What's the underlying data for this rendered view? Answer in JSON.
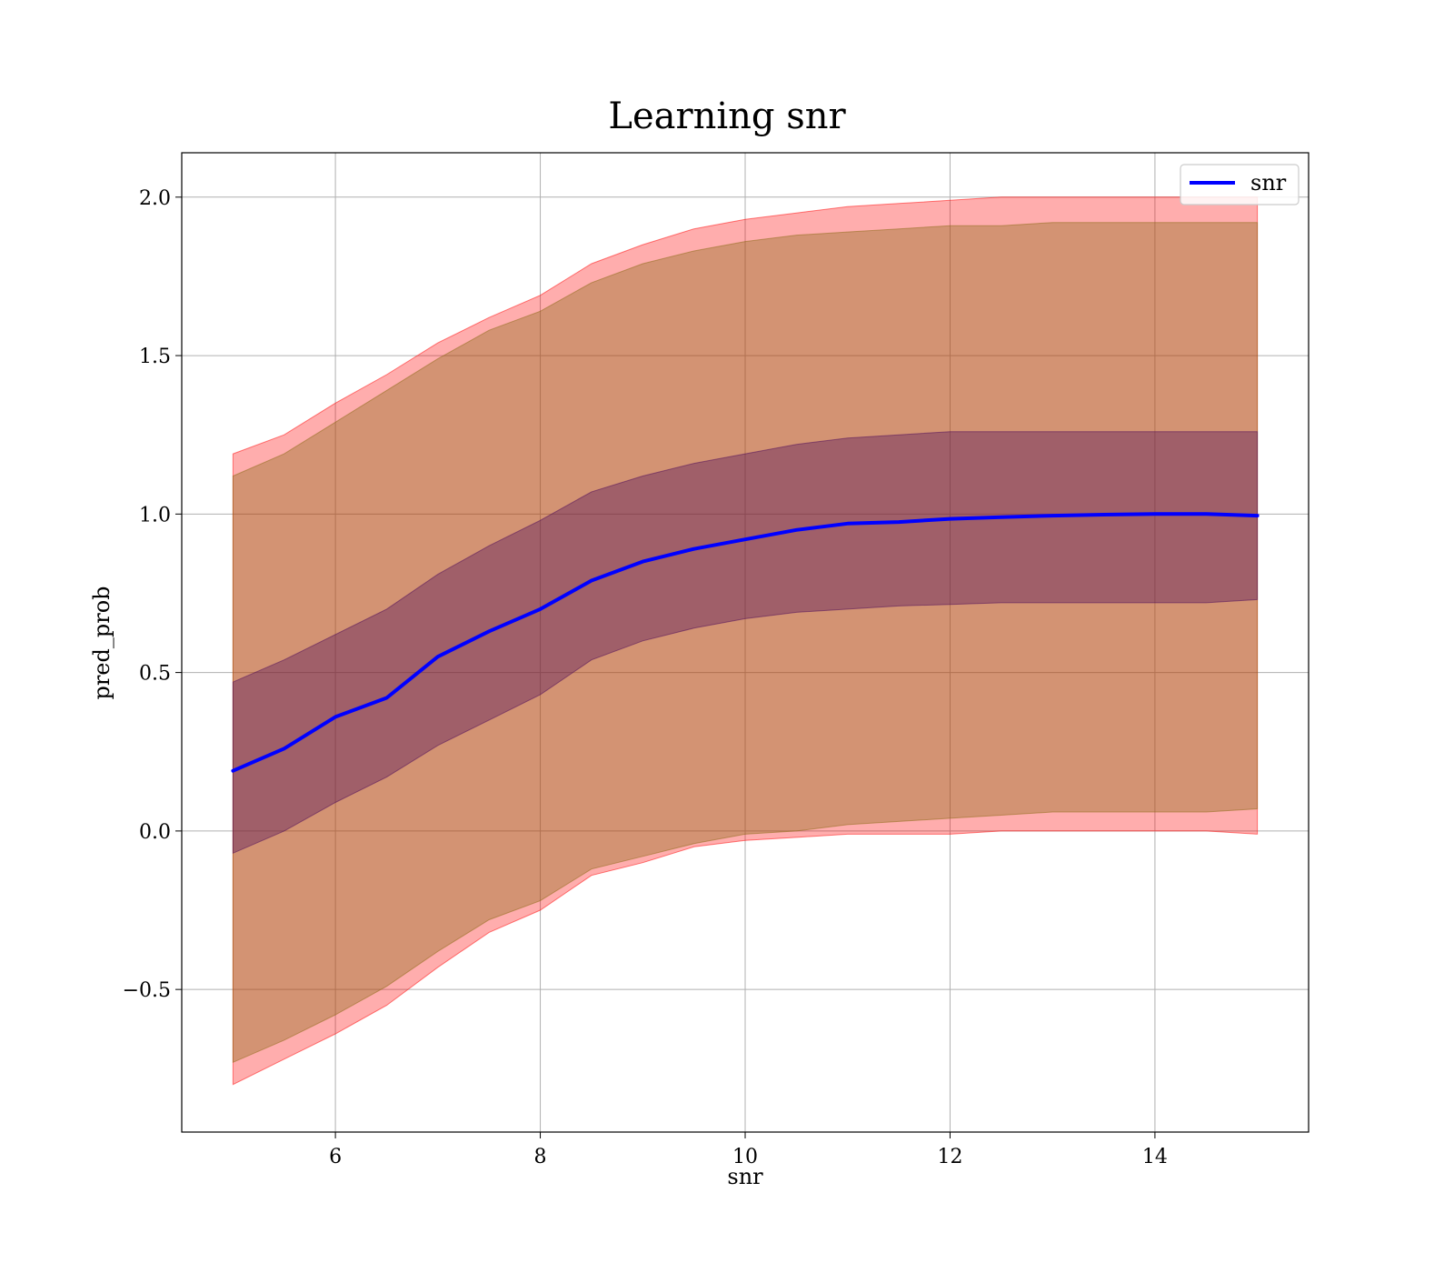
{
  "chart_data": {
    "type": "area",
    "title": "Learning snr",
    "xlabel": "snr",
    "ylabel": "pred_prob",
    "xlim": [
      4.5,
      15.5
    ],
    "ylim": [
      -0.95,
      2.14
    ],
    "xticks": [
      6,
      8,
      10,
      12,
      14
    ],
    "yticks": [
      -0.5,
      0.0,
      0.5,
      1.0,
      1.5,
      2.0
    ],
    "ytick_labels": [
      "−0.5",
      "0.0",
      "0.5",
      "1.0",
      "1.5",
      "2.0"
    ],
    "grid": true,
    "legend": {
      "position": "top-right",
      "entries": [
        "snr"
      ]
    },
    "x": [
      5.0,
      5.5,
      6.0,
      6.5,
      7.0,
      7.5,
      8.0,
      8.5,
      9.0,
      9.5,
      10.0,
      10.5,
      11.0,
      11.5,
      12.0,
      12.5,
      13.0,
      13.5,
      14.0,
      14.5,
      15.0
    ],
    "series": [
      {
        "name": "snr",
        "color": "#0000ff",
        "values": [
          0.19,
          0.26,
          0.36,
          0.42,
          0.55,
          0.63,
          0.7,
          0.79,
          0.85,
          0.89,
          0.92,
          0.95,
          0.97,
          0.975,
          0.985,
          0.99,
          0.995,
          0.998,
          1.0,
          1.0,
          0.995
        ]
      }
    ],
    "bands": [
      {
        "color": "#ff0000",
        "opacity": 0.32,
        "lower": [
          -0.8,
          -0.72,
          -0.64,
          -0.55,
          -0.43,
          -0.32,
          -0.25,
          -0.14,
          -0.1,
          -0.05,
          -0.03,
          -0.02,
          -0.01,
          -0.01,
          -0.01,
          0.0,
          0.0,
          0.0,
          0.0,
          0.0,
          -0.01
        ],
        "upper": [
          1.19,
          1.25,
          1.35,
          1.44,
          1.54,
          1.62,
          1.69,
          1.79,
          1.85,
          1.9,
          1.93,
          1.95,
          1.97,
          1.98,
          1.99,
          2.0,
          2.0,
          2.0,
          2.0,
          2.0,
          2.0
        ]
      },
      {
        "color": "#8b6914",
        "opacity": 0.38,
        "lower": [
          -0.73,
          -0.66,
          -0.58,
          -0.49,
          -0.38,
          -0.28,
          -0.22,
          -0.12,
          -0.08,
          -0.04,
          -0.01,
          0.0,
          0.02,
          0.03,
          0.04,
          0.05,
          0.06,
          0.06,
          0.06,
          0.06,
          0.07
        ],
        "upper": [
          1.12,
          1.19,
          1.29,
          1.39,
          1.49,
          1.58,
          1.64,
          1.73,
          1.79,
          1.83,
          1.86,
          1.88,
          1.89,
          1.9,
          1.91,
          1.91,
          1.92,
          1.92,
          1.92,
          1.92,
          1.92
        ]
      },
      {
        "color": "#4b0a5a",
        "opacity": 0.38,
        "lower": [
          -0.07,
          0.0,
          0.09,
          0.17,
          0.27,
          0.35,
          0.43,
          0.54,
          0.6,
          0.64,
          0.67,
          0.69,
          0.7,
          0.71,
          0.715,
          0.72,
          0.72,
          0.72,
          0.72,
          0.72,
          0.73
        ],
        "upper": [
          0.47,
          0.54,
          0.62,
          0.7,
          0.81,
          0.9,
          0.98,
          1.07,
          1.12,
          1.16,
          1.19,
          1.22,
          1.24,
          1.25,
          1.26,
          1.26,
          1.26,
          1.26,
          1.26,
          1.26,
          1.26
        ]
      }
    ]
  }
}
